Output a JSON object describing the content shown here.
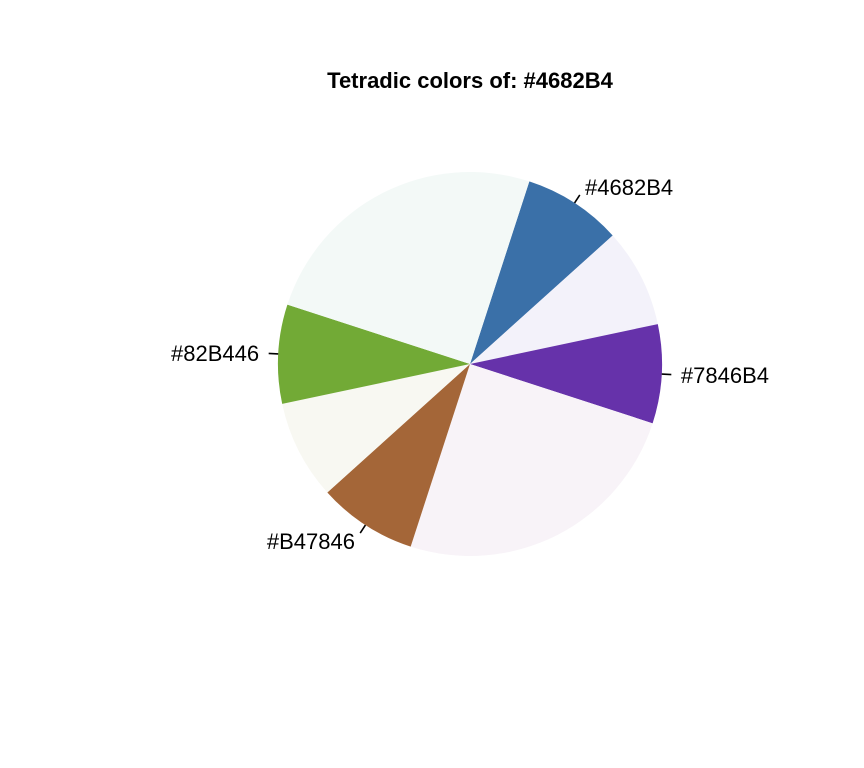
{
  "chart_data": {
    "type": "pie",
    "title": "Tetradic colors of:  #4682B4",
    "start_angle_deg": 72,
    "direction": "clockwise",
    "slices": [
      {
        "label": "#4682B4",
        "value": 1,
        "color": "#3A70A8"
      },
      {
        "label": "",
        "value": 1,
        "color": "#F3F2FA"
      },
      {
        "label": "#7846B4",
        "value": 1,
        "color": "#6632AA"
      },
      {
        "label": "",
        "value": 3,
        "color": "#F8F3F8"
      },
      {
        "label": "#B47846",
        "value": 1,
        "color": "#A46638"
      },
      {
        "label": "",
        "value": 1,
        "color": "#F8F8F2"
      },
      {
        "label": "#82B446",
        "value": 1,
        "color": "#72AA36"
      },
      {
        "label": "",
        "value": 3,
        "color": "#F3F9F7"
      }
    ]
  }
}
